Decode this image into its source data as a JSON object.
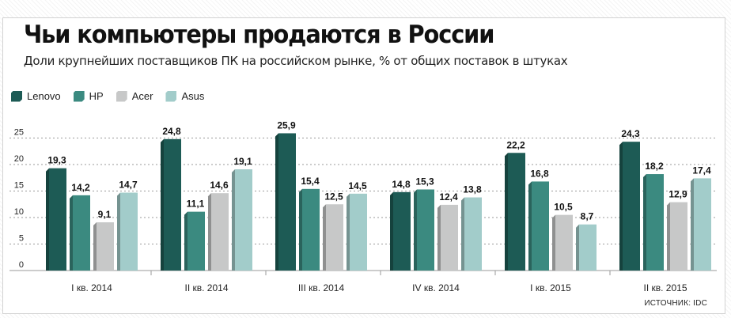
{
  "header": {
    "title": "Чьи компьютеры продаются в России",
    "subtitle": "Доли крупнейших поставщиков ПК на российском рынке, % от общих поставок в штуках"
  },
  "source": "ИСТОЧНИК: IDC",
  "colors": {
    "Lenovo": "#1d5b55",
    "HP": "#3b8a80",
    "Acer": "#c7c8c8",
    "Asus": "#a2ccca"
  },
  "chart_data": {
    "type": "bar",
    "title": "Чьи компьютеры продаются в России",
    "subtitle": "Доли крупнейших поставщиков ПК на российском рынке, % от общих поставок в штуках",
    "categories": [
      "I кв. 2014",
      "II кв. 2014",
      "III кв. 2014",
      "IV кв. 2014",
      "I кв. 2015",
      "II кв. 2015"
    ],
    "series": [
      {
        "name": "Lenovo",
        "values": [
          19.3,
          24.8,
          25.9,
          14.8,
          22.2,
          24.3
        ],
        "labels": [
          "19,3",
          "24,8",
          "25,9",
          "14,8",
          "22,2",
          "24,3"
        ]
      },
      {
        "name": "HP",
        "values": [
          14.2,
          11.1,
          15.4,
          15.3,
          16.8,
          18.2
        ],
        "labels": [
          "14,2",
          "11,1",
          "15,4",
          "15,3",
          "16,8",
          "18,2"
        ]
      },
      {
        "name": "Acer",
        "values": [
          9.1,
          14.6,
          12.5,
          12.4,
          10.5,
          12.9
        ],
        "labels": [
          "9,1",
          "14,6",
          "12,5",
          "12,4",
          "10,5",
          "12,9"
        ]
      },
      {
        "name": "Asus",
        "values": [
          14.7,
          19.1,
          14.5,
          13.8,
          8.7,
          17.4
        ],
        "labels": [
          "14,7",
          "19,1",
          "14,5",
          "13,8",
          "8,7",
          "17,4"
        ]
      }
    ],
    "yticks": [
      "0",
      "5",
      "10",
      "15",
      "20",
      "25"
    ],
    "ytick_values": [
      0,
      5,
      10,
      15,
      20,
      25
    ],
    "ylim": [
      0,
      28
    ],
    "xlabel": "",
    "ylabel": "",
    "grid": true,
    "legend": "top-left"
  }
}
